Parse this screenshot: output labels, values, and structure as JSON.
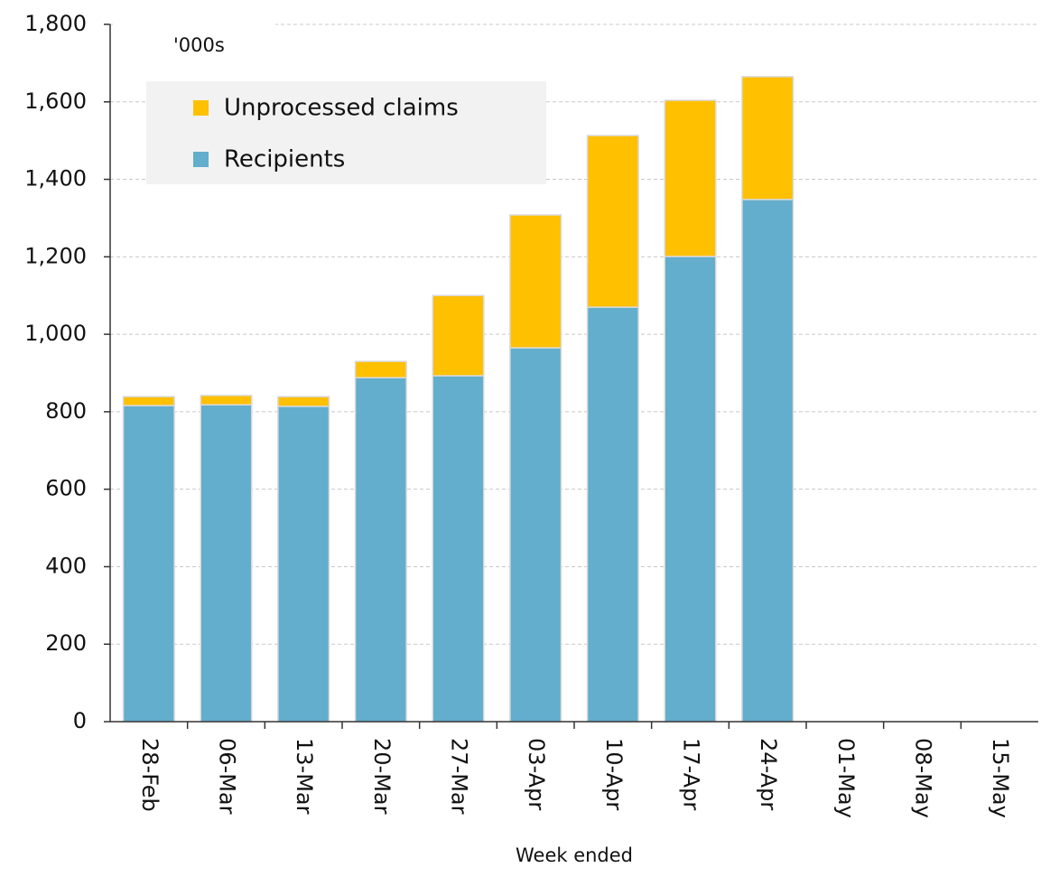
{
  "chart_data": {
    "type": "bar",
    "stacked": true,
    "annotation": "'000s",
    "x_label": "Week ended",
    "categories": [
      "28-Feb",
      "06-Mar",
      "13-Mar",
      "20-Mar",
      "27-Mar",
      "03-Apr",
      "10-Apr",
      "17-Apr",
      "24-Apr",
      "01-May",
      "08-May",
      "15-May"
    ],
    "series": [
      {
        "name": "Recipients",
        "color": "#63adcd",
        "values": [
          816,
          818,
          814,
          888,
          893,
          965,
          1070,
          1201,
          1348,
          null,
          null,
          null
        ]
      },
      {
        "name": "Unprocessed claims",
        "color": "#ffc000",
        "values": [
          23,
          24,
          25,
          42,
          207,
          343,
          443,
          403,
          317,
          null,
          null,
          null
        ]
      }
    ],
    "ylim": [
      0,
      1800
    ],
    "yticks": [
      0,
      200,
      400,
      600,
      800,
      {
        "value": 1000,
        "label": "1,000"
      },
      {
        "value": 1200,
        "label": "1,200"
      },
      {
        "value": 1400,
        "label": "1,400"
      },
      {
        "value": 1600,
        "label": "1,600"
      },
      {
        "value": 1800,
        "label": "1,800"
      }
    ],
    "grid": true
  }
}
